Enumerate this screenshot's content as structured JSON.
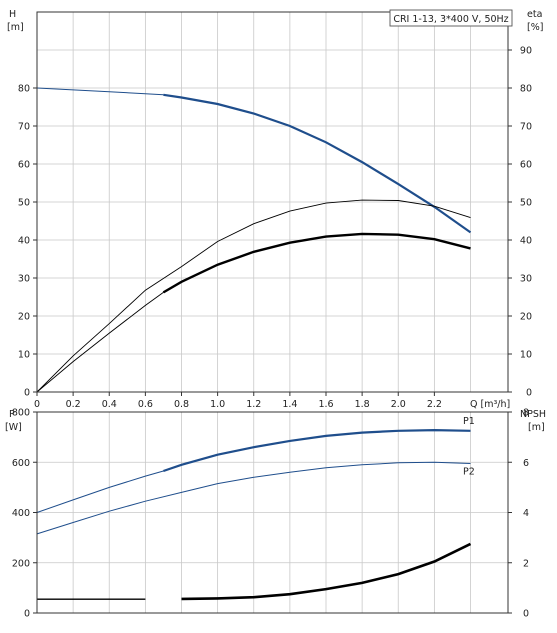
{
  "chart_data": [
    {
      "type": "line",
      "panel": "head-efficiency",
      "title": "CRI 1-13, 3*400 V, 50Hz",
      "x_unit_label": "Q [m³/h]",
      "xlim": [
        0,
        2.4
      ],
      "x_ticks": [
        "0",
        "0.2",
        "0.4",
        "0.6",
        "0.8",
        "1.0",
        "1.2",
        "1.4",
        "1.6",
        "1.8",
        "2.0",
        "2.2"
      ],
      "left_axis": {
        "name": "H",
        "unit": "[m]",
        "ylim": [
          0,
          100
        ],
        "ticks": [
          "0",
          "10",
          "20",
          "30",
          "40",
          "50",
          "60",
          "70",
          "80"
        ]
      },
      "right_axis": {
        "name": "eta",
        "unit": "[%]",
        "ylim": [
          0,
          100
        ],
        "ticks": [
          "0",
          "10",
          "20",
          "30",
          "40",
          "50",
          "60",
          "70",
          "80",
          "90"
        ]
      },
      "grid": true,
      "series": [
        {
          "axis": "left",
          "color": "#1f4e8c",
          "x": [
            0,
            0.2,
            0.4,
            0.6,
            0.7,
            0.8,
            1.0,
            1.2,
            1.4,
            1.6,
            1.8,
            2.0,
            2.2,
            2.4
          ],
          "y": [
            80,
            79.5,
            79,
            78.5,
            78.2,
            77.5,
            75.8,
            73.3,
            70,
            65.7,
            60.5,
            54.7,
            48.7,
            42
          ]
        },
        {
          "axis": "right",
          "color": "#000000",
          "x": [
            0,
            0.2,
            0.4,
            0.6,
            0.8,
            1.0,
            1.2,
            1.4,
            1.6,
            1.8,
            2.0,
            2.2,
            2.4
          ],
          "y": [
            0,
            9.5,
            18,
            26.8,
            33,
            39.6,
            44.3,
            47.6,
            49.7,
            50.5,
            50.4,
            48.9,
            45.9
          ]
        },
        {
          "axis": "right",
          "color": "#000000",
          "x": [
            0,
            0.2,
            0.4,
            0.6,
            0.7,
            0.8,
            1.0,
            1.2,
            1.4,
            1.6,
            1.8,
            2.0,
            2.2,
            2.4
          ],
          "y": [
            0,
            8,
            15.5,
            22.8,
            26.2,
            29,
            33.5,
            36.9,
            39.3,
            40.9,
            41.6,
            41.4,
            40.2,
            37.8
          ]
        }
      ]
    },
    {
      "type": "line",
      "panel": "power-npsh",
      "xlim": [
        0,
        2.4
      ],
      "left_axis": {
        "name": "P",
        "unit": "[W]",
        "ylim": [
          0,
          800
        ],
        "ticks": [
          "0",
          "200",
          "400",
          "600",
          "800"
        ]
      },
      "right_axis": {
        "name": "NPSH",
        "unit": "[m]",
        "ylim": [
          0,
          8
        ],
        "ticks": [
          "0",
          "2",
          "4",
          "6",
          "8"
        ]
      },
      "grid": true,
      "series": [
        {
          "name": "P1",
          "axis": "left",
          "color": "#1f4e8c",
          "x": [
            0,
            0.2,
            0.4,
            0.6,
            0.7,
            0.8,
            1.0,
            1.2,
            1.4,
            1.6,
            1.8,
            2.0,
            2.2,
            2.4
          ],
          "y": [
            400,
            450,
            500,
            545,
            565,
            590,
            630,
            660,
            685,
            705,
            718,
            725,
            728,
            725
          ]
        },
        {
          "name": "P2",
          "axis": "left",
          "color": "#1f4e8c",
          "x": [
            0,
            0.2,
            0.4,
            0.6,
            0.8,
            1.0,
            1.2,
            1.4,
            1.6,
            1.8,
            2.0,
            2.2,
            2.4
          ],
          "y": [
            315,
            360,
            405,
            445,
            480,
            515,
            540,
            560,
            578,
            590,
            598,
            600,
            595
          ]
        },
        {
          "axis": "right",
          "color": "#000000",
          "x": [
            0,
            0.2,
            0.4,
            0.6,
            0.8,
            1.0,
            1.2,
            1.4,
            1.6,
            1.8,
            2.0,
            2.2,
            2.4
          ],
          "y": [
            0.55,
            0.55,
            0.55,
            0.55,
            0.56,
            0.58,
            0.63,
            0.75,
            0.95,
            1.2,
            1.55,
            2.05,
            2.75
          ]
        }
      ]
    }
  ]
}
